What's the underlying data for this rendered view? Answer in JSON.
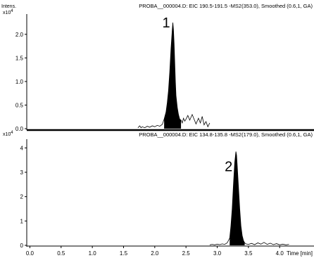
{
  "chart_data": {
    "type": "line",
    "x_axis": {
      "label": "Time [min]",
      "range": [
        -0.05,
        4.55
      ],
      "ticks": [
        "0.0",
        "0.5",
        "1.0",
        "1.5",
        "2.0",
        "2.5",
        "3.0",
        "3.5",
        "4.0"
      ],
      "tick_values": [
        0.0,
        0.5,
        1.0,
        1.5,
        2.0,
        2.5,
        3.0,
        3.5,
        4.0
      ]
    },
    "panels": [
      {
        "title": "PROBA__000004.D: EIC 190.5-191.5 -MS2(353.0), Smoothed (0.6,1, GA)",
        "y_label": "Intens.",
        "y_multiplier": "x10",
        "y_exponent": "4",
        "y_range": [
          0,
          2.4
        ],
        "y_ticks": [
          "0.0",
          "0.5",
          "1.0",
          "1.5",
          "2.0"
        ],
        "y_tick_values": [
          0.0,
          0.5,
          1.0,
          1.5,
          2.0
        ],
        "peak_label": "1",
        "peak_label_at": [
          2.12,
          2.15
        ],
        "trace_x": [
          1.73,
          1.76,
          1.78,
          1.8,
          1.84,
          1.88,
          1.92,
          1.96,
          2.0,
          2.04,
          2.08,
          2.12,
          2.15,
          2.18,
          2.2,
          2.22,
          2.24,
          2.26,
          2.28,
          2.29,
          2.3,
          2.31,
          2.32,
          2.33,
          2.34,
          2.36,
          2.38,
          2.4,
          2.42,
          2.44,
          2.46,
          2.48,
          2.5,
          2.53,
          2.56,
          2.6,
          2.63,
          2.66,
          2.7,
          2.73,
          2.76,
          2.79,
          2.82,
          2.85,
          2.88
        ],
        "trace_y": [
          0.02,
          0.06,
          0.02,
          0.04,
          0.02,
          0.05,
          0.03,
          0.06,
          0.04,
          0.07,
          0.05,
          0.09,
          0.2,
          0.35,
          0.55,
          0.8,
          1.2,
          1.7,
          2.1,
          2.25,
          2.1,
          1.8,
          1.4,
          1.0,
          0.7,
          0.45,
          0.3,
          0.2,
          0.18,
          0.12,
          0.22,
          0.16,
          0.2,
          0.28,
          0.18,
          0.3,
          0.2,
          0.1,
          0.22,
          0.12,
          0.26,
          0.08,
          0.15,
          0.04,
          0.12
        ],
        "fill_range": [
          2.15,
          2.42
        ]
      },
      {
        "title": "PROBA__000004.D: EIC 134.8-135.8 -MS2(179.0), Smoothed (0.6,1, GA)",
        "y_label": "",
        "y_multiplier": "x10",
        "y_exponent": "4",
        "y_range": [
          0,
          4.3
        ],
        "y_ticks": [
          "0",
          "1",
          "2",
          "3",
          "4"
        ],
        "y_tick_values": [
          0,
          1,
          2,
          3,
          4
        ],
        "peak_label": "2",
        "peak_label_at": [
          3.12,
          3.05
        ],
        "trace_x": [
          2.88,
          2.92,
          2.96,
          3.0,
          3.04,
          3.08,
          3.12,
          3.16,
          3.2,
          3.22,
          3.24,
          3.26,
          3.28,
          3.3,
          3.31,
          3.32,
          3.34,
          3.36,
          3.38,
          3.4,
          3.42,
          3.44,
          3.46,
          3.5,
          3.55,
          3.6,
          3.65,
          3.7,
          3.75,
          3.8,
          3.85,
          3.9,
          3.95,
          4.0,
          4.05,
          4.1,
          4.15
        ],
        "trace_y": [
          0.02,
          0.04,
          0.02,
          0.05,
          0.03,
          0.06,
          0.04,
          0.1,
          0.3,
          0.8,
          1.5,
          2.5,
          3.4,
          3.85,
          3.7,
          3.3,
          2.4,
          1.5,
          0.8,
          0.4,
          0.2,
          0.1,
          0.06,
          0.04,
          0.08,
          0.03,
          0.1,
          0.05,
          0.12,
          0.04,
          0.09,
          0.03,
          0.07,
          0.02,
          0.05,
          0.02,
          0.04
        ],
        "fill_range": [
          3.2,
          3.44
        ]
      }
    ]
  }
}
